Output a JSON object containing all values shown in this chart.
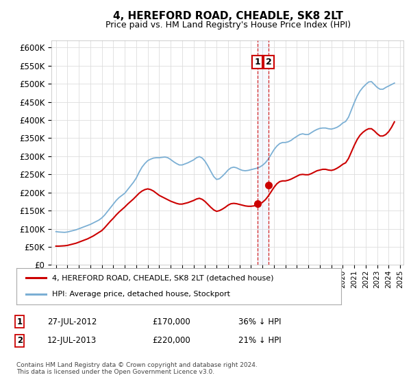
{
  "title": "4, HEREFORD ROAD, CHEADLE, SK8 2LT",
  "subtitle": "Price paid vs. HM Land Registry's House Price Index (HPI)",
  "ylim": [
    0,
    620000
  ],
  "yticks": [
    0,
    50000,
    100000,
    150000,
    200000,
    250000,
    300000,
    350000,
    400000,
    450000,
    500000,
    550000,
    600000
  ],
  "background_color": "#ffffff",
  "grid_color": "#dddddd",
  "hpi_color": "#7bafd4",
  "price_color": "#cc0000",
  "transaction1_date": 2012.57,
  "transaction2_date": 2013.54,
  "transaction1_price": 170000,
  "transaction2_price": 220000,
  "legend_label1": "4, HEREFORD ROAD, CHEADLE, SK8 2LT (detached house)",
  "legend_label2": "HPI: Average price, detached house, Stockport",
  "annotation1_label": "1",
  "annotation1_date": "27-JUL-2012",
  "annotation1_price": "£170,000",
  "annotation1_pct": "36% ↓ HPI",
  "annotation2_label": "2",
  "annotation2_date": "12-JUL-2013",
  "annotation2_price": "£220,000",
  "annotation2_pct": "21% ↓ HPI",
  "footer_text": "Contains HM Land Registry data © Crown copyright and database right 2024.\nThis data is licensed under the Open Government Licence v3.0.",
  "hpi_data": [
    [
      1995.0,
      92000
    ],
    [
      1995.25,
      91000
    ],
    [
      1995.5,
      90500
    ],
    [
      1995.75,
      90000
    ],
    [
      1996.0,
      91000
    ],
    [
      1996.25,
      93000
    ],
    [
      1996.5,
      95000
    ],
    [
      1996.75,
      97000
    ],
    [
      1997.0,
      100000
    ],
    [
      1997.25,
      103000
    ],
    [
      1997.5,
      106000
    ],
    [
      1997.75,
      109000
    ],
    [
      1998.0,
      112000
    ],
    [
      1998.25,
      116000
    ],
    [
      1998.5,
      120000
    ],
    [
      1998.75,
      124000
    ],
    [
      1999.0,
      130000
    ],
    [
      1999.25,
      138000
    ],
    [
      1999.5,
      148000
    ],
    [
      1999.75,
      158000
    ],
    [
      2000.0,
      168000
    ],
    [
      2000.25,
      178000
    ],
    [
      2000.5,
      186000
    ],
    [
      2000.75,
      192000
    ],
    [
      2001.0,
      198000
    ],
    [
      2001.25,
      208000
    ],
    [
      2001.5,
      218000
    ],
    [
      2001.75,
      228000
    ],
    [
      2002.0,
      240000
    ],
    [
      2002.25,
      256000
    ],
    [
      2002.5,
      270000
    ],
    [
      2002.75,
      280000
    ],
    [
      2003.0,
      288000
    ],
    [
      2003.25,
      292000
    ],
    [
      2003.5,
      295000
    ],
    [
      2003.75,
      296000
    ],
    [
      2004.0,
      296000
    ],
    [
      2004.25,
      297000
    ],
    [
      2004.5,
      298000
    ],
    [
      2004.75,
      296000
    ],
    [
      2005.0,
      291000
    ],
    [
      2005.25,
      285000
    ],
    [
      2005.5,
      280000
    ],
    [
      2005.75,
      276000
    ],
    [
      2006.0,
      276000
    ],
    [
      2006.25,
      279000
    ],
    [
      2006.5,
      282000
    ],
    [
      2006.75,
      286000
    ],
    [
      2007.0,
      290000
    ],
    [
      2007.25,
      296000
    ],
    [
      2007.5,
      299000
    ],
    [
      2007.75,
      295000
    ],
    [
      2008.0,
      286000
    ],
    [
      2008.25,
      273000
    ],
    [
      2008.5,
      258000
    ],
    [
      2008.75,
      244000
    ],
    [
      2009.0,
      236000
    ],
    [
      2009.25,
      238000
    ],
    [
      2009.5,
      245000
    ],
    [
      2009.75,
      253000
    ],
    [
      2010.0,
      262000
    ],
    [
      2010.25,
      268000
    ],
    [
      2010.5,
      270000
    ],
    [
      2010.75,
      268000
    ],
    [
      2011.0,
      264000
    ],
    [
      2011.25,
      261000
    ],
    [
      2011.5,
      260000
    ],
    [
      2011.75,
      261000
    ],
    [
      2012.0,
      263000
    ],
    [
      2012.25,
      265000
    ],
    [
      2012.5,
      267000
    ],
    [
      2012.75,
      270000
    ],
    [
      2013.0,
      275000
    ],
    [
      2013.25,
      282000
    ],
    [
      2013.5,
      292000
    ],
    [
      2013.75,
      305000
    ],
    [
      2014.0,
      318000
    ],
    [
      2014.25,
      328000
    ],
    [
      2014.5,
      335000
    ],
    [
      2014.75,
      338000
    ],
    [
      2015.0,
      338000
    ],
    [
      2015.25,
      340000
    ],
    [
      2015.5,
      344000
    ],
    [
      2015.75,
      350000
    ],
    [
      2016.0,
      355000
    ],
    [
      2016.25,
      360000
    ],
    [
      2016.5,
      362000
    ],
    [
      2016.75,
      360000
    ],
    [
      2017.0,
      360000
    ],
    [
      2017.25,
      365000
    ],
    [
      2017.5,
      370000
    ],
    [
      2017.75,
      374000
    ],
    [
      2018.0,
      377000
    ],
    [
      2018.25,
      378000
    ],
    [
      2018.5,
      378000
    ],
    [
      2018.75,
      376000
    ],
    [
      2019.0,
      375000
    ],
    [
      2019.25,
      377000
    ],
    [
      2019.5,
      380000
    ],
    [
      2019.75,
      385000
    ],
    [
      2020.0,
      392000
    ],
    [
      2020.25,
      396000
    ],
    [
      2020.5,
      408000
    ],
    [
      2020.75,
      428000
    ],
    [
      2021.0,
      448000
    ],
    [
      2021.25,
      466000
    ],
    [
      2021.5,
      480000
    ],
    [
      2021.75,
      490000
    ],
    [
      2022.0,
      498000
    ],
    [
      2022.25,
      505000
    ],
    [
      2022.5,
      506000
    ],
    [
      2022.75,
      498000
    ],
    [
      2023.0,
      490000
    ],
    [
      2023.25,
      485000
    ],
    [
      2023.5,
      485000
    ],
    [
      2023.75,
      490000
    ],
    [
      2024.0,
      494000
    ],
    [
      2024.25,
      498000
    ],
    [
      2024.5,
      502000
    ]
  ],
  "price_data": [
    [
      1995.0,
      52000
    ],
    [
      1995.25,
      52000
    ],
    [
      1995.5,
      52500
    ],
    [
      1995.75,
      53000
    ],
    [
      1996.0,
      54000
    ],
    [
      1996.25,
      56000
    ],
    [
      1996.5,
      58000
    ],
    [
      1996.75,
      60000
    ],
    [
      1997.0,
      63000
    ],
    [
      1997.25,
      66000
    ],
    [
      1997.5,
      69000
    ],
    [
      1997.75,
      72000
    ],
    [
      1998.0,
      76000
    ],
    [
      1998.25,
      80000
    ],
    [
      1998.5,
      85000
    ],
    [
      1998.75,
      90000
    ],
    [
      1999.0,
      95000
    ],
    [
      1999.25,
      103000
    ],
    [
      1999.5,
      112000
    ],
    [
      1999.75,
      121000
    ],
    [
      2000.0,
      129000
    ],
    [
      2000.25,
      138000
    ],
    [
      2000.5,
      146000
    ],
    [
      2000.75,
      153000
    ],
    [
      2001.0,
      160000
    ],
    [
      2001.25,
      168000
    ],
    [
      2001.5,
      175000
    ],
    [
      2001.75,
      182000
    ],
    [
      2002.0,
      190000
    ],
    [
      2002.25,
      198000
    ],
    [
      2002.5,
      204000
    ],
    [
      2002.75,
      208000
    ],
    [
      2003.0,
      210000
    ],
    [
      2003.25,
      208000
    ],
    [
      2003.5,
      204000
    ],
    [
      2003.75,
      198000
    ],
    [
      2004.0,
      192000
    ],
    [
      2004.25,
      188000
    ],
    [
      2004.5,
      184000
    ],
    [
      2004.75,
      180000
    ],
    [
      2005.0,
      176000
    ],
    [
      2005.25,
      173000
    ],
    [
      2005.5,
      170000
    ],
    [
      2005.75,
      168000
    ],
    [
      2006.0,
      168000
    ],
    [
      2006.25,
      170000
    ],
    [
      2006.5,
      172000
    ],
    [
      2006.75,
      175000
    ],
    [
      2007.0,
      178000
    ],
    [
      2007.25,
      182000
    ],
    [
      2007.5,
      184000
    ],
    [
      2007.75,
      181000
    ],
    [
      2008.0,
      175000
    ],
    [
      2008.25,
      167000
    ],
    [
      2008.5,
      159000
    ],
    [
      2008.75,
      152000
    ],
    [
      2009.0,
      148000
    ],
    [
      2009.25,
      150000
    ],
    [
      2009.5,
      154000
    ],
    [
      2009.75,
      159000
    ],
    [
      2010.0,
      165000
    ],
    [
      2010.25,
      169000
    ],
    [
      2010.5,
      170000
    ],
    [
      2010.75,
      169000
    ],
    [
      2011.0,
      167000
    ],
    [
      2011.25,
      165000
    ],
    [
      2011.5,
      163000
    ],
    [
      2011.75,
      162000
    ],
    [
      2012.0,
      162000
    ],
    [
      2012.25,
      163000
    ],
    [
      2012.5,
      165000
    ],
    [
      2012.75,
      168000
    ],
    [
      2013.0,
      173000
    ],
    [
      2013.25,
      180000
    ],
    [
      2013.5,
      190000
    ],
    [
      2013.75,
      202000
    ],
    [
      2014.0,
      214000
    ],
    [
      2014.25,
      224000
    ],
    [
      2014.5,
      230000
    ],
    [
      2014.75,
      232000
    ],
    [
      2015.0,
      232000
    ],
    [
      2015.25,
      234000
    ],
    [
      2015.5,
      237000
    ],
    [
      2015.75,
      241000
    ],
    [
      2016.0,
      245000
    ],
    [
      2016.25,
      249000
    ],
    [
      2016.5,
      250000
    ],
    [
      2016.75,
      249000
    ],
    [
      2017.0,
      249000
    ],
    [
      2017.25,
      252000
    ],
    [
      2017.5,
      256000
    ],
    [
      2017.75,
      260000
    ],
    [
      2018.0,
      262000
    ],
    [
      2018.25,
      264000
    ],
    [
      2018.5,
      264000
    ],
    [
      2018.75,
      262000
    ],
    [
      2019.0,
      261000
    ],
    [
      2019.25,
      263000
    ],
    [
      2019.5,
      267000
    ],
    [
      2019.75,
      272000
    ],
    [
      2020.0,
      278000
    ],
    [
      2020.25,
      282000
    ],
    [
      2020.5,
      294000
    ],
    [
      2020.75,
      312000
    ],
    [
      2021.0,
      330000
    ],
    [
      2021.25,
      346000
    ],
    [
      2021.5,
      358000
    ],
    [
      2021.75,
      366000
    ],
    [
      2022.0,
      372000
    ],
    [
      2022.25,
      376000
    ],
    [
      2022.5,
      376000
    ],
    [
      2022.75,
      370000
    ],
    [
      2023.0,
      362000
    ],
    [
      2023.25,
      356000
    ],
    [
      2023.5,
      356000
    ],
    [
      2023.75,
      360000
    ],
    [
      2024.0,
      368000
    ],
    [
      2024.25,
      380000
    ],
    [
      2024.5,
      395000
    ]
  ]
}
